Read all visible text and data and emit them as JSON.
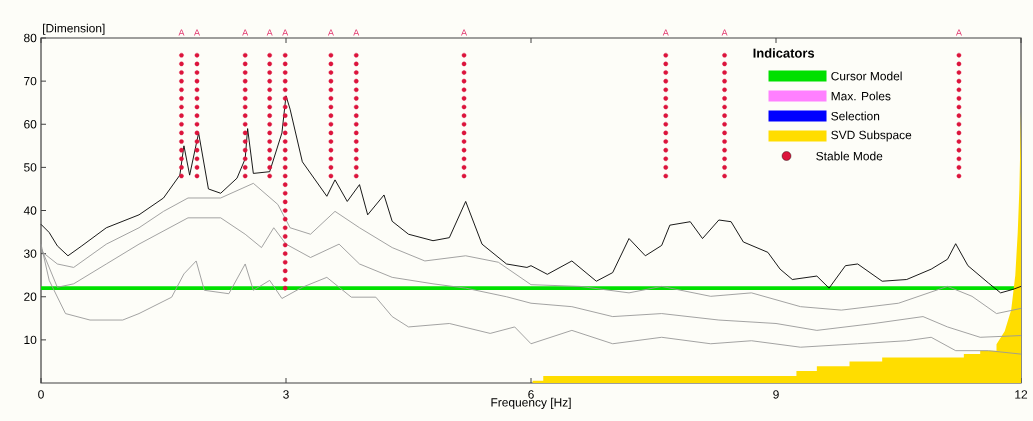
{
  "chart_data": {
    "type": "line",
    "xlabel": "Frequency [Hz]",
    "ylabel": "[Dimension]",
    "legend_title": "Indicators",
    "legend": "top right",
    "xlim": [
      0,
      12
    ],
    "xticks": [
      0,
      3,
      6,
      9,
      12
    ],
    "ylim": [
      0,
      80
    ],
    "yticks": [
      10,
      20,
      30,
      40,
      50,
      60,
      70,
      80
    ],
    "ref_lines": [
      {
        "axis": "y",
        "value": 22,
        "label": "Cursor Model",
        "color": "#00e000"
      }
    ],
    "annotations": [
      {
        "text": "A",
        "x": 1.72,
        "y": 76
      },
      {
        "text": "A",
        "x": 1.91,
        "y": 76
      },
      {
        "text": "A",
        "x": 2.5,
        "y": 76
      },
      {
        "text": "A",
        "x": 2.8,
        "y": 76
      },
      {
        "text": "A",
        "x": 2.99,
        "y": 76
      },
      {
        "text": "A",
        "x": 3.55,
        "y": 76
      },
      {
        "text": "A",
        "x": 3.86,
        "y": 76
      },
      {
        "text": "A",
        "x": 5.18,
        "y": 76
      },
      {
        "text": "A",
        "x": 7.65,
        "y": 76
      },
      {
        "text": "A",
        "x": 8.37,
        "y": 76
      },
      {
        "text": "A",
        "x": 11.24,
        "y": 76
      }
    ],
    "series": [
      {
        "type": "bar",
        "name": "Max. Poles",
        "color": "#ff80ff"
      },
      {
        "type": "bar",
        "name": "Selection",
        "color": "#0000ff"
      },
      {
        "type": "area",
        "name": "SVD Subspace",
        "color": "#ffdd00",
        "x": [
          6.02,
          6.02,
          6.15,
          6.15,
          9.25,
          9.25,
          9.5,
          9.5,
          9.9,
          9.9,
          10.3,
          10.3,
          11.3,
          11.3,
          11.5,
          11.5,
          11.7,
          11.7,
          11.8,
          11.88,
          11.93,
          11.96,
          11.98,
          12,
          12
        ],
        "values": [
          0,
          0.5,
          0.5,
          1.6,
          1.6,
          2.8,
          2.8,
          3.9,
          3.9,
          5,
          5,
          5.9,
          5.9,
          6.7,
          6.7,
          7.5,
          7.5,
          9,
          12,
          17,
          25,
          35,
          45,
          63,
          0
        ]
      },
      {
        "type": "scatter",
        "name": "Stable Mode",
        "color": "#dc143c",
        "marker": "circle",
        "x": [
          1.72,
          1.72,
          1.72,
          1.72,
          1.72,
          1.72,
          1.72,
          1.72,
          1.72,
          1.72,
          1.72,
          1.72,
          1.72,
          1.72,
          1.72,
          1.91,
          1.91,
          1.91,
          1.91,
          1.91,
          1.91,
          1.91,
          1.91,
          1.91,
          1.91,
          1.91,
          1.91,
          1.91,
          1.91,
          1.91,
          2.5,
          2.5,
          2.5,
          2.5,
          2.5,
          2.5,
          2.5,
          2.5,
          2.5,
          2.5,
          2.5,
          2.5,
          2.5,
          2.5,
          2.5,
          2.8,
          2.8,
          2.8,
          2.8,
          2.8,
          2.8,
          2.8,
          2.8,
          2.8,
          2.8,
          2.8,
          2.8,
          2.8,
          2.8,
          2.8,
          2.99,
          2.99,
          2.99,
          2.99,
          2.99,
          2.99,
          2.99,
          2.99,
          2.99,
          2.99,
          2.99,
          2.99,
          2.99,
          2.99,
          2.99,
          2.99,
          2.99,
          2.99,
          2.99,
          2.99,
          2.99,
          2.99,
          2.99,
          2.99,
          2.99,
          2.99,
          2.99,
          2.99,
          3.55,
          3.55,
          3.55,
          3.55,
          3.55,
          3.55,
          3.55,
          3.55,
          3.55,
          3.55,
          3.55,
          3.55,
          3.55,
          3.55,
          3.55,
          3.86,
          3.86,
          3.86,
          3.86,
          3.86,
          3.86,
          3.86,
          3.86,
          3.86,
          3.86,
          3.86,
          3.86,
          3.86,
          3.86,
          3.86,
          5.18,
          5.18,
          5.18,
          5.18,
          5.18,
          5.18,
          5.18,
          5.18,
          5.18,
          5.18,
          5.18,
          5.18,
          5.18,
          5.18,
          5.18,
          7.65,
          7.65,
          7.65,
          7.65,
          7.65,
          7.65,
          7.65,
          7.65,
          7.65,
          7.65,
          7.65,
          7.65,
          7.65,
          7.65,
          7.65,
          8.37,
          8.37,
          8.37,
          8.37,
          8.37,
          8.37,
          8.37,
          8.37,
          8.37,
          8.37,
          8.37,
          8.37,
          8.37,
          8.37,
          8.37,
          11.24,
          11.24,
          11.24,
          11.24,
          11.24,
          11.24,
          11.24,
          11.24,
          11.24,
          11.24,
          11.24,
          11.24,
          11.24,
          11.24,
          11.24
        ],
        "values": [
          48,
          50,
          52,
          54,
          56,
          58,
          60,
          62,
          64,
          66,
          68,
          70,
          72,
          74,
          76,
          48,
          50,
          52,
          54,
          56,
          58,
          60,
          62,
          64,
          66,
          68,
          70,
          72,
          74,
          76,
          48,
          50,
          52,
          54,
          56,
          58,
          60,
          62,
          64,
          66,
          68,
          70,
          72,
          74,
          76,
          48,
          50,
          52,
          54,
          56,
          58,
          60,
          62,
          64,
          66,
          68,
          70,
          72,
          74,
          76,
          22,
          24,
          26,
          28,
          30,
          32,
          34,
          36,
          38,
          40,
          42,
          44,
          46,
          48,
          50,
          52,
          54,
          56,
          58,
          60,
          62,
          64,
          66,
          68,
          70,
          72,
          74,
          76,
          48,
          50,
          52,
          54,
          56,
          58,
          60,
          62,
          64,
          66,
          68,
          70,
          72,
          74,
          76,
          48,
          50,
          52,
          54,
          56,
          58,
          60,
          62,
          64,
          66,
          68,
          70,
          72,
          74,
          76,
          48,
          50,
          52,
          54,
          56,
          58,
          60,
          62,
          64,
          66,
          68,
          70,
          72,
          74,
          76,
          48,
          50,
          52,
          54,
          56,
          58,
          60,
          62,
          64,
          66,
          68,
          70,
          72,
          74,
          76,
          48,
          50,
          52,
          54,
          56,
          58,
          60,
          62,
          64,
          66,
          68,
          70,
          72,
          74,
          76,
          48,
          50,
          52,
          54,
          56,
          58,
          60,
          62,
          64,
          66,
          68,
          70,
          72,
          74,
          76
        ]
      },
      {
        "color": "#000000",
        "x": [
          0,
          0.1,
          0.2,
          0.33,
          0.5,
          0.8,
          1.2,
          1.5,
          1.7,
          1.75,
          1.82,
          1.93,
          2.05,
          2.2,
          2.4,
          2.5,
          2.53,
          2.6,
          2.8,
          2.95,
          3.0,
          3.05,
          3.2,
          3.5,
          3.6,
          3.75,
          3.9,
          4.0,
          4.2,
          4.3,
          4.5,
          4.8,
          5.0,
          5.2,
          5.4,
          5.7,
          5.95,
          6.0,
          6.2,
          6.5,
          6.8,
          7.0,
          7.2,
          7.4,
          7.6,
          7.7,
          7.95,
          8.1,
          8.3,
          8.45,
          8.6,
          8.9,
          9.05,
          9.2,
          9.5,
          9.65,
          9.85,
          10.0,
          10.3,
          10.6,
          10.9,
          11.1,
          11.2,
          11.35,
          11.6,
          11.75,
          11.9,
          12
        ],
        "values": [
          36.8,
          34.9,
          31.8,
          29.5,
          31.8,
          36,
          39,
          42.9,
          48.2,
          55,
          48.2,
          58,
          45,
          44,
          47.5,
          52,
          59,
          48.6,
          49,
          58,
          66.6,
          63.5,
          51.3,
          43.3,
          47.1,
          42.1,
          46,
          39,
          43.6,
          37.5,
          34.5,
          33,
          33.7,
          42.1,
          32.2,
          27.6,
          26.8,
          27.2,
          25.2,
          28.3,
          23.6,
          25.6,
          33.5,
          29.5,
          31.9,
          36.6,
          37.4,
          33.5,
          37.8,
          37.4,
          32.7,
          30.3,
          26.4,
          24,
          24.8,
          22,
          27.2,
          27.6,
          23.6,
          24,
          26.4,
          28.7,
          32.3,
          27.2,
          23.2,
          20.9,
          21.7,
          22.4
        ]
      },
      {
        "color": "#999999",
        "x": [
          0,
          0.2,
          0.4,
          0.8,
          1.2,
          1.5,
          1.8,
          2.2,
          2.6,
          2.9,
          3.05,
          3.3,
          3.6,
          3.9,
          4.3,
          4.7,
          5.2,
          5.6,
          6.0,
          6.6,
          7.2,
          7.6,
          8.2,
          8.7,
          9.3,
          9.8,
          10.5,
          11.1,
          11.4,
          11.7,
          12
        ],
        "values": [
          30.6,
          27.6,
          26.8,
          32.2,
          36,
          39.8,
          42.9,
          42.9,
          46.3,
          41.4,
          36,
          34.5,
          39.8,
          36,
          31.4,
          28.3,
          29.5,
          28,
          22.8,
          22.4,
          20.9,
          22.4,
          20.1,
          20.9,
          17.7,
          16.9,
          18.5,
          22.4,
          20.1,
          16.1,
          17.3
        ]
      },
      {
        "color": "#999999",
        "x": [
          0,
          0.2,
          0.4,
          0.8,
          1.2,
          1.8,
          2.2,
          2.5,
          2.7,
          2.85,
          3.0,
          3.3,
          3.65,
          3.9,
          4.3,
          4.8,
          5.2,
          5.7,
          6.0,
          6.5,
          7.0,
          7.6,
          8.3,
          9.0,
          9.5,
          10.2,
          10.8,
          11.1,
          11.5,
          12
        ],
        "values": [
          31.4,
          22.2,
          23,
          27.6,
          32.2,
          38.3,
          38.3,
          34.5,
          31.4,
          36,
          32.2,
          29.1,
          32.2,
          27.6,
          24.5,
          23,
          22,
          20,
          18.5,
          17.7,
          15.4,
          16.1,
          14.6,
          13.8,
          12.2,
          13.8,
          15.4,
          13,
          10.6,
          11
        ]
      },
      {
        "color": "#999999",
        "x": [
          0,
          0.1,
          0.3,
          0.6,
          1.0,
          1.2,
          1.6,
          1.75,
          1.9,
          2.0,
          2.3,
          2.5,
          2.6,
          2.8,
          2.95,
          3.2,
          3.5,
          3.8,
          4.1,
          4.3,
          4.5,
          5.0,
          5.5,
          5.8,
          6.0,
          6.5,
          7.0,
          7.6,
          8.2,
          8.7,
          9.3,
          10.0,
          10.6,
          10.9,
          11.2,
          11.6,
          12
        ],
        "values": [
          32.2,
          23.8,
          16.1,
          14.6,
          14.6,
          16.1,
          19.9,
          25.3,
          28.3,
          21.5,
          20.7,
          27.6,
          21.5,
          23.8,
          19.6,
          22.2,
          24.5,
          19.9,
          19.9,
          15.4,
          13,
          13.8,
          11.5,
          13,
          9.1,
          12.2,
          9.1,
          10.6,
          9.1,
          9.8,
          8.3,
          9.1,
          9.8,
          10.6,
          7.5,
          7.5,
          6.7
        ]
      }
    ]
  }
}
